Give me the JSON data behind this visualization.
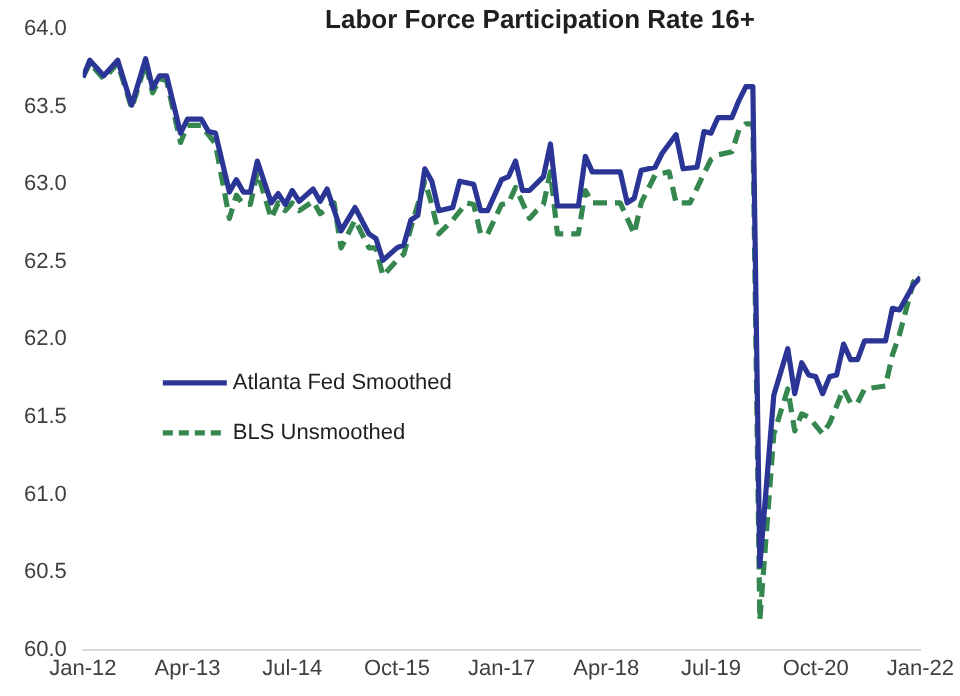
{
  "chart_data": {
    "type": "line",
    "title": "Labor Force Participation Rate 16+",
    "xlim": [
      "2012-01",
      "2022-01"
    ],
    "xticks": [
      {
        "value": "2012-01",
        "label": "Jan-12"
      },
      {
        "value": "2013-04",
        "label": "Apr-13"
      },
      {
        "value": "2014-07",
        "label": "Jul-14"
      },
      {
        "value": "2015-10",
        "label": "Oct-15"
      },
      {
        "value": "2017-01",
        "label": "Jan-17"
      },
      {
        "value": "2018-04",
        "label": "Apr-18"
      },
      {
        "value": "2019-07",
        "label": "Jul-19"
      },
      {
        "value": "2020-10",
        "label": "Oct-20"
      },
      {
        "value": "2022-01",
        "label": "Jan-22"
      }
    ],
    "ylim": [
      60,
      64
    ],
    "yticks": [
      {
        "value": 60,
        "label": "60.0"
      },
      {
        "value": 60.5,
        "label": "60.5"
      },
      {
        "value": 61,
        "label": "61.0"
      },
      {
        "value": 61.5,
        "label": "61.5"
      },
      {
        "value": 62,
        "label": "62.0"
      },
      {
        "value": 62.5,
        "label": "62.5"
      },
      {
        "value": 63,
        "label": "63.0"
      },
      {
        "value": 63.5,
        "label": "63.5"
      },
      {
        "value": 64,
        "label": "64.0"
      }
    ],
    "grid": false,
    "legend": "center left",
    "marker": "none",
    "series": [
      {
        "name": "Atlanta Fed Smoothed",
        "color": "#2b3596",
        "line_style": "solid",
        "x": [
          "2012-01",
          "2012-02",
          "2012-04",
          "2012-06",
          "2012-08",
          "2012-10",
          "2012-11",
          "2012-12",
          "2013-01",
          "2013-03",
          "2013-04",
          "2013-06",
          "2013-07",
          "2013-08",
          "2013-10",
          "2013-11",
          "2013-12",
          "2014-01",
          "2014-02",
          "2014-04",
          "2014-05",
          "2014-06",
          "2014-07",
          "2014-08",
          "2014-10",
          "2014-11",
          "2014-12",
          "2015-02",
          "2015-04",
          "2015-06",
          "2015-07",
          "2015-08",
          "2015-10",
          "2015-11",
          "2015-12",
          "2016-01",
          "2016-02",
          "2016-03",
          "2016-04",
          "2016-06",
          "2016-07",
          "2016-09",
          "2016-10",
          "2016-11",
          "2017-01",
          "2017-02",
          "2017-03",
          "2017-04",
          "2017-05",
          "2017-07",
          "2017-08",
          "2017-09",
          "2017-12",
          "2018-01",
          "2018-02",
          "2018-06",
          "2018-07",
          "2018-08",
          "2018-09",
          "2018-11",
          "2018-12",
          "2019-02",
          "2019-03",
          "2019-05",
          "2019-06",
          "2019-07",
          "2019-08",
          "2019-10",
          "2019-11",
          "2019-12",
          "2020-01",
          "2020-02",
          "2020-04",
          "2020-06",
          "2020-07",
          "2020-08",
          "2020-09",
          "2020-10",
          "2020-11",
          "2020-12",
          "2021-01",
          "2021-02",
          "2021-03",
          "2021-04",
          "2021-05",
          "2021-08",
          "2021-09",
          "2021-10",
          "2021-12",
          "2022-01"
        ],
        "values": [
          63.69,
          63.8,
          63.7,
          63.8,
          63.51,
          63.81,
          63.62,
          63.7,
          63.7,
          63.33,
          63.42,
          63.42,
          63.34,
          63.33,
          62.95,
          63.03,
          62.95,
          62.95,
          63.15,
          62.88,
          62.94,
          62.87,
          62.96,
          62.89,
          62.97,
          62.89,
          62.97,
          62.7,
          62.85,
          62.68,
          62.65,
          62.51,
          62.59,
          62.61,
          62.77,
          62.8,
          63.1,
          63.02,
          62.83,
          62.85,
          63.02,
          63.0,
          62.83,
          62.83,
          63.03,
          63.05,
          63.15,
          62.96,
          62.96,
          63.05,
          63.26,
          62.86,
          62.86,
          63.18,
          63.08,
          63.08,
          62.88,
          62.91,
          63.09,
          63.11,
          63.2,
          63.32,
          63.1,
          63.11,
          63.34,
          63.33,
          63.43,
          63.43,
          63.54,
          63.63,
          63.63,
          60.54,
          61.64,
          61.94,
          61.65,
          61.85,
          61.77,
          61.76,
          61.65,
          61.76,
          61.77,
          61.97,
          61.87,
          61.87,
          61.99,
          61.99,
          62.2,
          62.19,
          62.35,
          62.4
        ]
      },
      {
        "name": "BLS Unsmoothed",
        "color": "#35874f",
        "line_style": "dashed",
        "x": [
          "2012-01",
          "2012-02",
          "2012-04",
          "2012-06",
          "2012-08",
          "2012-10",
          "2012-11",
          "2012-12",
          "2013-01",
          "2013-03",
          "2013-04",
          "2013-06",
          "2013-08",
          "2013-10",
          "2013-11",
          "2013-12",
          "2014-01",
          "2014-02",
          "2014-04",
          "2014-05",
          "2014-06",
          "2014-07",
          "2014-08",
          "2014-10",
          "2014-11",
          "2015-01",
          "2015-02",
          "2015-04",
          "2015-06",
          "2015-07",
          "2015-08",
          "2015-10",
          "2015-11",
          "2015-12",
          "2016-02",
          "2016-03",
          "2016-04",
          "2016-06",
          "2016-08",
          "2016-09",
          "2016-10",
          "2016-11",
          "2017-01",
          "2017-02",
          "2017-03",
          "2017-05",
          "2017-06",
          "2017-07",
          "2017-08",
          "2017-09",
          "2017-12",
          "2018-01",
          "2018-02",
          "2018-06",
          "2018-08",
          "2018-09",
          "2018-11",
          "2019-01",
          "2019-02",
          "2019-04",
          "2019-06",
          "2019-07",
          "2019-08",
          "2019-10",
          "2019-11",
          "2019-12",
          "2020-01",
          "2020-02",
          "2020-04",
          "2020-06",
          "2020-07",
          "2020-08",
          "2020-09",
          "2020-11",
          "2020-12",
          "2021-02",
          "2021-03",
          "2021-04",
          "2021-05",
          "2021-08",
          "2021-09",
          "2021-10",
          "2021-12",
          "2022-01"
        ],
        "values": [
          63.69,
          63.78,
          63.68,
          63.78,
          63.49,
          63.78,
          63.59,
          63.68,
          63.67,
          63.27,
          63.38,
          63.38,
          63.26,
          62.78,
          62.93,
          62.87,
          62.87,
          63.08,
          62.78,
          62.88,
          62.83,
          62.88,
          62.83,
          62.89,
          62.81,
          62.88,
          62.59,
          62.77,
          62.59,
          62.59,
          62.41,
          62.51,
          62.55,
          62.72,
          63.02,
          62.87,
          62.68,
          62.77,
          62.88,
          62.87,
          62.68,
          62.68,
          62.87,
          62.88,
          62.98,
          62.78,
          62.83,
          62.87,
          63.08,
          62.68,
          62.68,
          62.96,
          62.88,
          62.88,
          62.68,
          62.88,
          63.06,
          63.08,
          62.88,
          62.88,
          63.07,
          63.16,
          63.19,
          63.21,
          63.35,
          63.39,
          63.39,
          60.19,
          61.39,
          61.68,
          61.41,
          61.52,
          61.5,
          61.39,
          61.46,
          61.68,
          61.59,
          61.59,
          61.68,
          61.7,
          61.9,
          62.03,
          62.37,
          62.42
        ]
      }
    ]
  }
}
